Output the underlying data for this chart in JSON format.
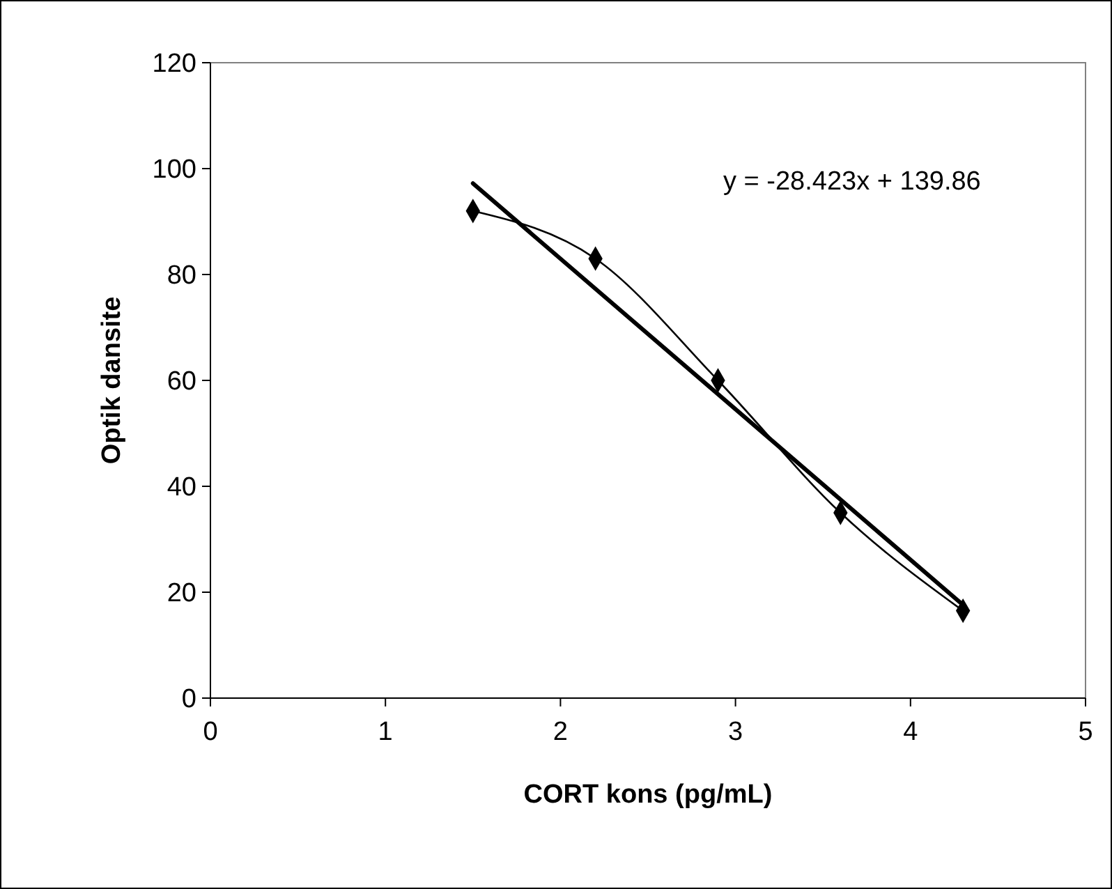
{
  "chart_data": {
    "type": "line",
    "xlabel": "CORT kons (pg/mL)",
    "ylabel": "Optik dansite",
    "x": [
      1.5,
      2.2,
      2.9,
      3.6,
      4.3
    ],
    "series": [
      {
        "color": "#000000",
        "values": [
          92,
          83,
          60,
          35,
          16.5
        ],
        "marker": "diamond"
      },
      {
        "color": "#000000",
        "x": [
          1.5,
          4.3
        ],
        "values": [
          97.2,
          17.6
        ],
        "marker": "none"
      }
    ],
    "annotations": [
      "y = -28.423x + 139.86"
    ],
    "xlim": [
      0,
      5
    ],
    "xticks": [
      0,
      1,
      2,
      3,
      4,
      5
    ],
    "ylim": [
      0,
      120
    ],
    "yticks": [
      0,
      20,
      40,
      60,
      80,
      100,
      120
    ],
    "grid": false
  }
}
